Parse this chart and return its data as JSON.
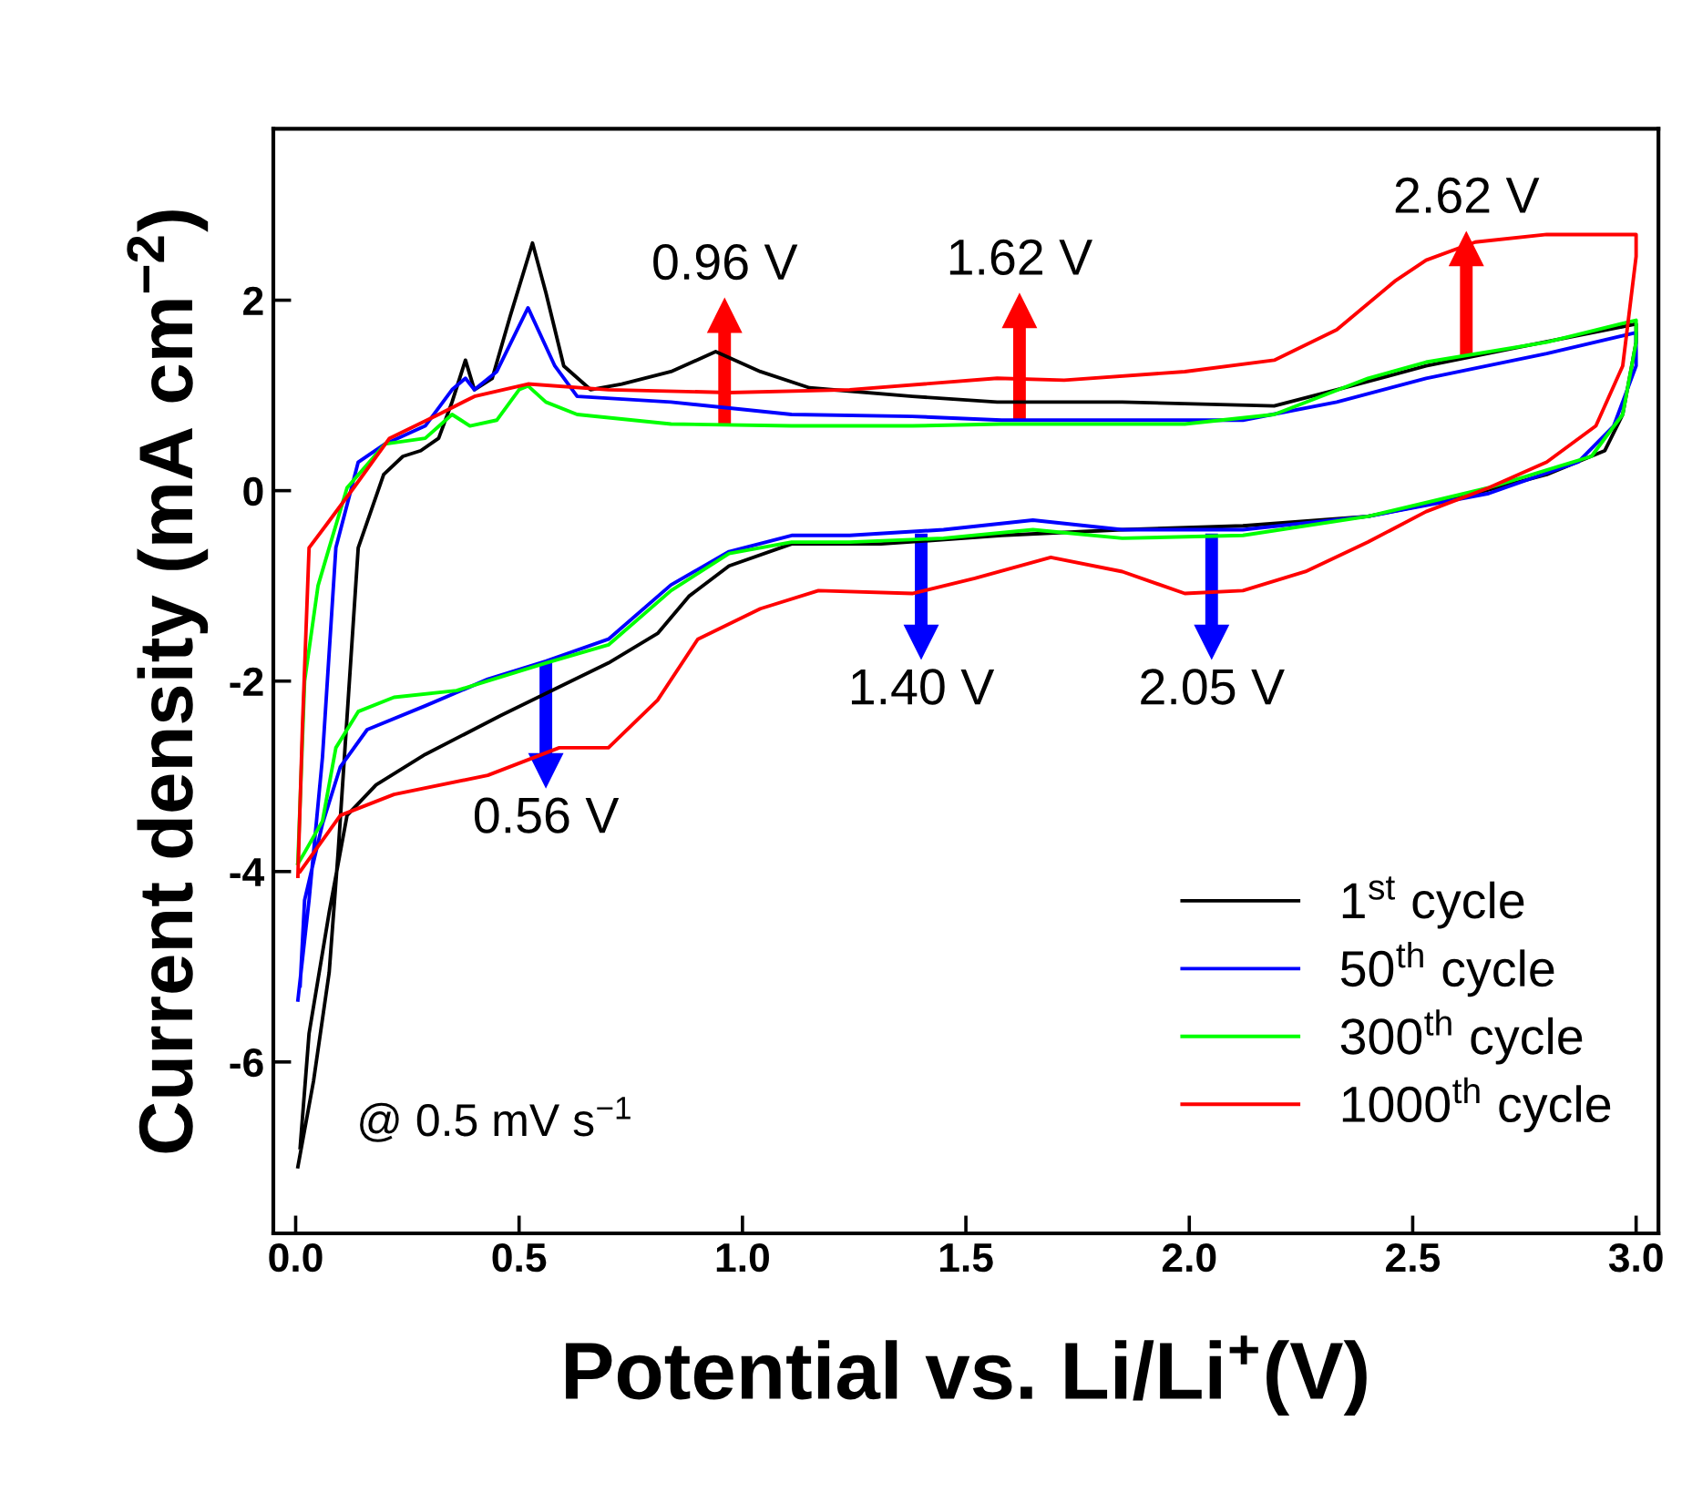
{
  "chart_data": {
    "type": "line",
    "xlabel": "Potential vs. Li/Li$^{+}$(V)",
    "ylabel": "Current density (mA cm$^{−2}$)",
    "xlim": [
      -0.05,
      3.05
    ],
    "ylim": [
      -7.8,
      3.8
    ],
    "xticks": [
      {
        "value": 0,
        "label": "0.0"
      },
      {
        "value": 0.5,
        "label": "0.5"
      },
      {
        "value": 1,
        "label": "1.0"
      },
      {
        "value": 1.5,
        "label": "1.5"
      },
      {
        "value": 2,
        "label": "2.0"
      },
      {
        "value": 2.5,
        "label": "2.5"
      },
      {
        "value": 3,
        "label": "3.0"
      }
    ],
    "yticks": [
      -6,
      -4,
      -2,
      0,
      2
    ],
    "grid": false,
    "legend": "bottom right",
    "marker": "none",
    "line_style": "solid",
    "series": [
      {
        "name": "1$^{st}$ cycle",
        "color": "#000000",
        "x": [
          0.005,
          0.04,
          0.075,
          0.095,
          0.14,
          0.197,
          0.24,
          0.28,
          0.32,
          0.35,
          0.38,
          0.4,
          0.44,
          0.48,
          0.53,
          0.56,
          0.6,
          0.66,
          0.73,
          0.84,
          0.94,
          1.04,
          1.15,
          1.38,
          1.57,
          1.85,
          2.19,
          2.33,
          2.53,
          2.73,
          3.0,
          3.0,
          2.97,
          2.93,
          2.8,
          2.6,
          2.4,
          2.12,
          1.85,
          1.58,
          1.31,
          1.11,
          0.97,
          0.88,
          0.81,
          0.7,
          0.56,
          0.46,
          0.29,
          0.18,
          0.115,
          0.075,
          0.03,
          0.01
        ],
        "values": [
          -7.1,
          -6.2,
          -5.06,
          -3.8,
          -0.6,
          0.17,
          0.36,
          0.42,
          0.55,
          0.93,
          1.37,
          1.06,
          1.18,
          1.83,
          2.6,
          2.08,
          1.31,
          1.06,
          1.12,
          1.25,
          1.46,
          1.25,
          1.08,
          0.99,
          0.93,
          0.93,
          0.89,
          1.06,
          1.31,
          1.5,
          1.75,
          1.56,
          0.8,
          0.42,
          0.17,
          -0.08,
          -0.27,
          -0.37,
          -0.41,
          -0.47,
          -0.56,
          -0.56,
          -0.79,
          -1.11,
          -1.5,
          -1.81,
          -2.13,
          -2.36,
          -2.77,
          -3.09,
          -3.41,
          -4.43,
          -5.7,
          -6.9
        ]
      },
      {
        "name": "50$^{th}$ cycle",
        "color": "#0000ff",
        "x": [
          0.005,
          0.03,
          0.06,
          0.09,
          0.14,
          0.2,
          0.29,
          0.35,
          0.38,
          0.4,
          0.45,
          0.52,
          0.58,
          0.63,
          0.84,
          1.11,
          1.38,
          1.58,
          2.12,
          2.33,
          2.53,
          2.8,
          3.0,
          3.0,
          2.95,
          2.87,
          2.67,
          2.4,
          2.12,
          1.85,
          1.65,
          1.45,
          1.24,
          1.11,
          0.97,
          0.84,
          0.7,
          0.56,
          0.43,
          0.29,
          0.16,
          0.1,
          0.06,
          0.02,
          0.01
        ],
        "values": [
          -5.35,
          -4.3,
          -2.8,
          -0.6,
          0.3,
          0.49,
          0.68,
          1.06,
          1.18,
          1.06,
          1.25,
          1.92,
          1.31,
          0.99,
          0.93,
          0.8,
          0.78,
          0.74,
          0.74,
          0.93,
          1.18,
          1.44,
          1.66,
          1.31,
          0.68,
          0.3,
          -0.03,
          -0.27,
          -0.41,
          -0.41,
          -0.31,
          -0.41,
          -0.47,
          -0.47,
          -0.64,
          -0.99,
          -1.56,
          -1.79,
          -1.98,
          -2.26,
          -2.51,
          -2.9,
          -3.5,
          -4.3,
          -5.2
        ]
      },
      {
        "name": "300$^{th}$ cycle",
        "color": "#00ff00",
        "x": [
          0.005,
          0.02,
          0.05,
          0.075,
          0.115,
          0.2,
          0.29,
          0.35,
          0.39,
          0.45,
          0.5,
          0.52,
          0.56,
          0.63,
          0.84,
          1.11,
          1.38,
          1.58,
          1.99,
          2.19,
          2.4,
          2.53,
          2.8,
          3.0,
          3.0,
          2.97,
          2.9,
          2.67,
          2.4,
          2.12,
          1.85,
          1.65,
          1.45,
          1.24,
          1.11,
          0.97,
          0.84,
          0.7,
          0.56,
          0.36,
          0.22,
          0.14,
          0.09,
          0.06,
          0.02,
          0.005
        ],
        "values": [
          -3.9,
          -2.0,
          -1.0,
          -0.6,
          0.03,
          0.49,
          0.55,
          0.8,
          0.68,
          0.74,
          1.06,
          1.1,
          0.93,
          0.8,
          0.7,
          0.68,
          0.68,
          0.7,
          0.7,
          0.8,
          1.18,
          1.35,
          1.56,
          1.79,
          1.56,
          0.8,
          0.36,
          0.03,
          -0.27,
          -0.47,
          -0.5,
          -0.41,
          -0.5,
          -0.54,
          -0.54,
          -0.66,
          -1.05,
          -1.62,
          -1.81,
          -2.1,
          -2.17,
          -2.32,
          -2.7,
          -3.47,
          -3.8,
          -3.92
        ]
      },
      {
        "name": "1000$^{th}$ cycle",
        "color": "#ff0000",
        "x": [
          0.005,
          0.015,
          0.03,
          0.07,
          0.13,
          0.21,
          0.32,
          0.4,
          0.52,
          0.7,
          0.97,
          1.24,
          1.57,
          1.72,
          1.99,
          2.19,
          2.33,
          2.46,
          2.53,
          2.64,
          2.8,
          3.0,
          3.0,
          2.97,
          2.91,
          2.8,
          2.67,
          2.53,
          2.4,
          2.26,
          2.12,
          1.99,
          1.85,
          1.69,
          1.52,
          1.38,
          1.17,
          1.04,
          0.9,
          0.81,
          0.7,
          0.59,
          0.43,
          0.22,
          0.1,
          0.01
        ],
        "values": [
          -4.05,
          -2.5,
          -0.6,
          -0.35,
          0.03,
          0.55,
          0.8,
          0.99,
          1.12,
          1.06,
          1.03,
          1.06,
          1.18,
          1.16,
          1.25,
          1.37,
          1.69,
          2.2,
          2.42,
          2.61,
          2.69,
          2.69,
          2.46,
          1.31,
          0.68,
          0.3,
          0.03,
          -0.22,
          -0.54,
          -0.85,
          -1.05,
          -1.08,
          -0.85,
          -0.7,
          -0.92,
          -1.08,
          -1.05,
          -1.24,
          -1.56,
          -2.2,
          -2.7,
          -2.7,
          -2.99,
          -3.19,
          -3.41,
          -4.0
        ]
      }
    ],
    "annotations": [
      {
        "text": "0.96 V",
        "x": 0.96,
        "y": 0.7
      },
      {
        "text": "1.62 V",
        "x": 1.62,
        "y": 0.75
      },
      {
        "text": "2.62 V",
        "x": 2.62,
        "y": 1.4
      },
      {
        "text": "0.56 V",
        "x": 0.56,
        "y": -1.8
      },
      {
        "text": "1.40 V",
        "x": 1.4,
        "y": -0.45
      },
      {
        "text": "2.05 V",
        "x": 2.05,
        "y": -0.45
      },
      "@ 0.5 mV s$^{−1}$"
    ]
  }
}
